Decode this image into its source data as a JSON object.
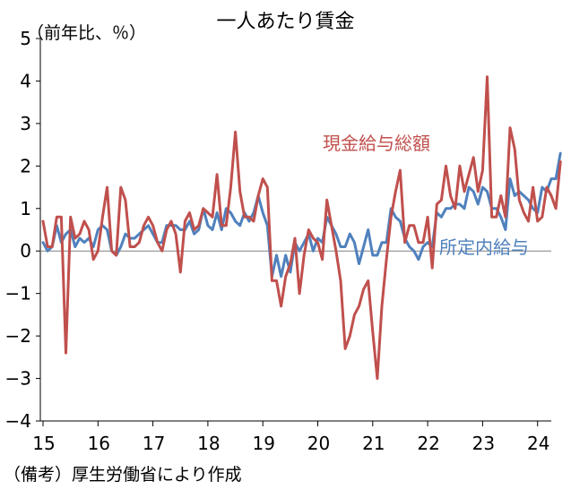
{
  "title": "一人あたり賃金",
  "unit_label": "（前年比、％）",
  "source_note": "（備考）厚生労働省により作成",
  "series_labels": {
    "cash": "現金給与総額",
    "scheduled": "所定内給与"
  },
  "colors": {
    "cash": "#c0504d",
    "scheduled": "#4f81bd",
    "axis": "#000000",
    "zero": "#808080"
  },
  "chart_data": {
    "type": "line",
    "title": "一人あたり賃金",
    "ylabel": "（前年比、％）",
    "xlabel": "",
    "ylim": [
      -4,
      5
    ],
    "y_ticks": [
      "5",
      "4",
      "3",
      "2",
      "1",
      "0",
      "−1",
      "−2",
      "−3",
      "−4"
    ],
    "x_ticks": [
      "15",
      "16",
      "17",
      "18",
      "19",
      "20",
      "21",
      "22",
      "23",
      "24"
    ],
    "x_unit": "year (2-digit), monthly data starting 2015-01",
    "grid": false,
    "series": [
      {
        "name": "現金給与総額",
        "values": [
          0.7,
          0.1,
          0.1,
          0.8,
          0.8,
          -2.4,
          0.8,
          0.3,
          0.4,
          0.7,
          0.5,
          -0.2,
          0.0,
          0.8,
          1.5,
          0.0,
          -0.1,
          1.5,
          1.2,
          0.1,
          0.1,
          0.2,
          0.6,
          0.8,
          0.6,
          0.2,
          0.0,
          0.5,
          0.7,
          0.4,
          -0.5,
          0.7,
          0.9,
          0.5,
          0.6,
          1.0,
          0.9,
          0.8,
          1.8,
          0.6,
          0.6,
          1.5,
          2.8,
          1.4,
          0.8,
          0.8,
          0.7,
          1.3,
          1.7,
          1.5,
          -0.7,
          -0.7,
          -1.3,
          -0.6,
          -0.3,
          0.3,
          -1.0,
          -0.1,
          0.5,
          0.3,
          0.2,
          -0.2,
          1.2,
          0.6,
          0.0,
          -0.7,
          -2.3,
          -2.0,
          -1.5,
          -1.3,
          -0.9,
          -0.7,
          -1.9,
          -3.0,
          -1.3,
          -0.2,
          0.8,
          1.4,
          1.9,
          0.2,
          0.6,
          0.6,
          0.2,
          0.2,
          0.8,
          -0.4,
          1.1,
          1.2,
          2.0,
          1.3,
          1.0,
          2.0,
          1.4,
          1.8,
          2.2,
          1.4,
          1.9,
          4.1,
          0.8,
          0.8,
          1.3,
          0.8,
          2.9,
          2.4,
          1.2,
          0.9,
          0.7,
          1.5,
          0.7,
          0.8,
          1.5,
          1.3,
          1.0,
          2.1
        ]
      },
      {
        "name": "所定内給与",
        "values": [
          0.2,
          0.0,
          0.1,
          0.6,
          0.2,
          0.4,
          0.5,
          0.1,
          0.3,
          0.2,
          0.3,
          0.1,
          0.5,
          0.6,
          0.5,
          0.0,
          -0.1,
          0.1,
          0.4,
          0.3,
          0.3,
          0.4,
          0.5,
          0.6,
          0.4,
          0.2,
          0.2,
          0.6,
          0.6,
          0.6,
          0.5,
          0.5,
          0.7,
          0.4,
          0.5,
          1.0,
          0.6,
          0.5,
          0.9,
          0.5,
          1.0,
          0.9,
          0.7,
          0.6,
          0.9,
          0.7,
          0.9,
          1.3,
          0.9,
          0.6,
          -0.6,
          -0.1,
          -0.6,
          -0.1,
          -0.5,
          0.2,
          0.0,
          0.2,
          0.4,
          0.0,
          0.3,
          0.2,
          0.8,
          0.6,
          0.4,
          0.1,
          0.1,
          0.4,
          0.2,
          -0.3,
          0.1,
          0.5,
          -0.1,
          -0.1,
          0.2,
          0.2,
          1.0,
          0.8,
          0.7,
          0.3,
          0.1,
          0.0,
          -0.2,
          0.1,
          0.2,
          0.1,
          0.9,
          0.8,
          1.0,
          1.0,
          1.1,
          1.1,
          1.0,
          1.5,
          1.4,
          1.1,
          1.5,
          1.4,
          1.0,
          1.0,
          0.8,
          0.5,
          1.7,
          1.3,
          1.4,
          1.3,
          1.2,
          1.0,
          0.9,
          1.5,
          1.4,
          1.7,
          1.7,
          2.3
        ]
      }
    ]
  }
}
